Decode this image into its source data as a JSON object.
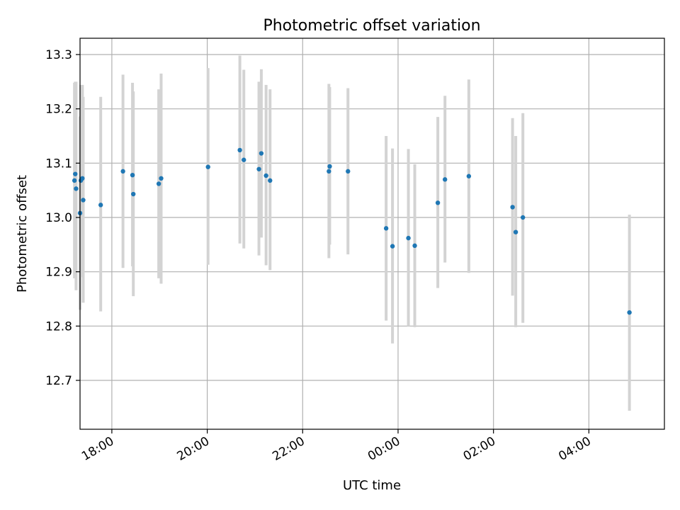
{
  "chart_data": {
    "type": "scatter",
    "title": "Photometric offset variation",
    "xlabel": "UTC time",
    "ylabel": "Photometric offset",
    "x_axis": {
      "start": "17:20",
      "end": "05:35",
      "ticks": [
        "18:00",
        "20:00",
        "22:00",
        "00:00",
        "02:00",
        "04:00"
      ]
    },
    "y_axis": {
      "min": 12.61,
      "max": 13.33,
      "ticks": [
        "12.7",
        "12.8",
        "12.9",
        "13.0",
        "13.1",
        "13.2",
        "13.3"
      ]
    },
    "grid": true,
    "colors": {
      "point": "#1f77b4",
      "errorbar": "#d3d3d3",
      "grid": "#b0b0b0"
    },
    "points": [
      {
        "x": "17:13",
        "y": 13.068,
        "err_low": 12.888,
        "err_high": 13.248
      },
      {
        "x": "17:14",
        "y": 13.08,
        "err_low": 12.905,
        "err_high": 13.25
      },
      {
        "x": "17:15",
        "y": 13.053,
        "err_low": 12.866,
        "err_high": 13.25
      },
      {
        "x": "17:20",
        "y": 13.008,
        "err_low": 12.83,
        "err_high": 13.186
      },
      {
        "x": "17:21",
        "y": 13.068,
        "err_low": 12.89,
        "err_high": 13.244
      },
      {
        "x": "17:23",
        "y": 13.072,
        "err_low": 12.897,
        "err_high": 13.244
      },
      {
        "x": "17:24",
        "y": 13.032,
        "err_low": 12.843,
        "err_high": 13.222
      },
      {
        "x": "17:46",
        "y": 13.023,
        "err_low": 12.827,
        "err_high": 13.222
      },
      {
        "x": "18:14",
        "y": 13.085,
        "err_low": 12.907,
        "err_high": 13.263
      },
      {
        "x": "18:26",
        "y": 13.078,
        "err_low": 12.91,
        "err_high": 13.248
      },
      {
        "x": "18:27",
        "y": 13.043,
        "err_low": 12.855,
        "err_high": 13.232
      },
      {
        "x": "18:59",
        "y": 13.062,
        "err_low": 12.888,
        "err_high": 13.236
      },
      {
        "x": "19:02",
        "y": 13.072,
        "err_low": 12.878,
        "err_high": 13.265
      },
      {
        "x": "20:01",
        "y": 13.093,
        "err_low": 12.913,
        "err_high": 13.275
      },
      {
        "x": "20:41",
        "y": 13.124,
        "err_low": 12.952,
        "err_high": 13.298
      },
      {
        "x": "20:46",
        "y": 13.106,
        "err_low": 12.943,
        "err_high": 13.272
      },
      {
        "x": "21:05",
        "y": 13.089,
        "err_low": 12.93,
        "err_high": 13.25
      },
      {
        "x": "21:08",
        "y": 13.118,
        "err_low": 12.963,
        "err_high": 13.273
      },
      {
        "x": "21:14",
        "y": 13.077,
        "err_low": 12.912,
        "err_high": 13.244
      },
      {
        "x": "21:19",
        "y": 13.068,
        "err_low": 12.903,
        "err_high": 13.236
      },
      {
        "x": "22:33",
        "y": 13.085,
        "err_low": 12.925,
        "err_high": 13.246
      },
      {
        "x": "22:34",
        "y": 13.094,
        "err_low": 12.95,
        "err_high": 13.24
      },
      {
        "x": "22:57",
        "y": 13.085,
        "err_low": 12.932,
        "err_high": 13.238
      },
      {
        "x": "23:45",
        "y": 12.98,
        "err_low": 12.81,
        "err_high": 13.15
      },
      {
        "x": "23:53",
        "y": 12.947,
        "err_low": 12.768,
        "err_high": 13.127
      },
      {
        "x": "00:13",
        "y": 12.962,
        "err_low": 12.8,
        "err_high": 13.126
      },
      {
        "x": "00:21",
        "y": 12.948,
        "err_low": 12.798,
        "err_high": 13.098
      },
      {
        "x": "00:50",
        "y": 13.027,
        "err_low": 12.87,
        "err_high": 13.185
      },
      {
        "x": "00:59",
        "y": 13.07,
        "err_low": 12.917,
        "err_high": 13.224
      },
      {
        "x": "01:29",
        "y": 13.076,
        "err_low": 12.898,
        "err_high": 13.254
      },
      {
        "x": "02:24",
        "y": 13.019,
        "err_low": 12.856,
        "err_high": 13.183
      },
      {
        "x": "02:28",
        "y": 12.973,
        "err_low": 12.798,
        "err_high": 13.15
      },
      {
        "x": "02:37",
        "y": 13.0,
        "err_low": 12.806,
        "err_high": 13.192
      },
      {
        "x": "04:51",
        "y": 12.825,
        "err_low": 12.644,
        "err_high": 13.005
      }
    ]
  }
}
